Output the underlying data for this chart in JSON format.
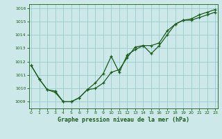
{
  "title": "Graphe pression niveau de la mer (hPa)",
  "background_color": "#cce8e8",
  "grid_color": "#99cccc",
  "line_color": "#1a5c1a",
  "ylim": [
    1008.5,
    1016.3
  ],
  "xlim": [
    -0.3,
    23.3
  ],
  "yticks": [
    1009,
    1010,
    1011,
    1012,
    1013,
    1014,
    1015,
    1016
  ],
  "xticks": [
    0,
    1,
    2,
    3,
    4,
    5,
    6,
    7,
    8,
    9,
    10,
    11,
    12,
    13,
    14,
    15,
    16,
    17,
    18,
    19,
    20,
    21,
    22,
    23
  ],
  "series1_x": [
    0,
    1,
    2,
    3,
    4,
    5,
    6,
    7,
    8,
    9,
    10,
    11,
    12,
    13,
    14,
    15,
    16,
    17,
    18,
    19,
    20,
    21,
    22,
    23
  ],
  "series1_y": [
    1011.7,
    1010.7,
    1009.9,
    1009.8,
    1009.0,
    1009.0,
    1009.3,
    1009.9,
    1010.0,
    1010.4,
    1011.2,
    1011.4,
    1012.3,
    1013.1,
    1013.2,
    1012.6,
    1013.2,
    1014.0,
    1014.8,
    1015.1,
    1015.1,
    1015.3,
    1015.5,
    1015.7
  ],
  "series2_x": [
    0,
    1,
    2,
    3,
    4,
    5,
    6,
    7,
    8,
    9,
    10,
    11,
    12,
    13,
    14,
    15,
    16,
    17,
    18,
    19,
    20,
    21,
    22,
    23
  ],
  "series2_y": [
    1011.7,
    1010.7,
    1009.9,
    1009.7,
    1009.0,
    1009.0,
    1009.3,
    1009.9,
    1010.4,
    1011.1,
    1012.4,
    1011.2,
    1012.5,
    1012.9,
    1013.2,
    1013.2,
    1013.4,
    1014.3,
    1014.8,
    1015.1,
    1015.2,
    1015.5,
    1015.7,
    1015.9
  ],
  "title_fontsize": 6,
  "tick_fontsize": 4.5,
  "linewidth": 0.9,
  "markersize": 3.0
}
